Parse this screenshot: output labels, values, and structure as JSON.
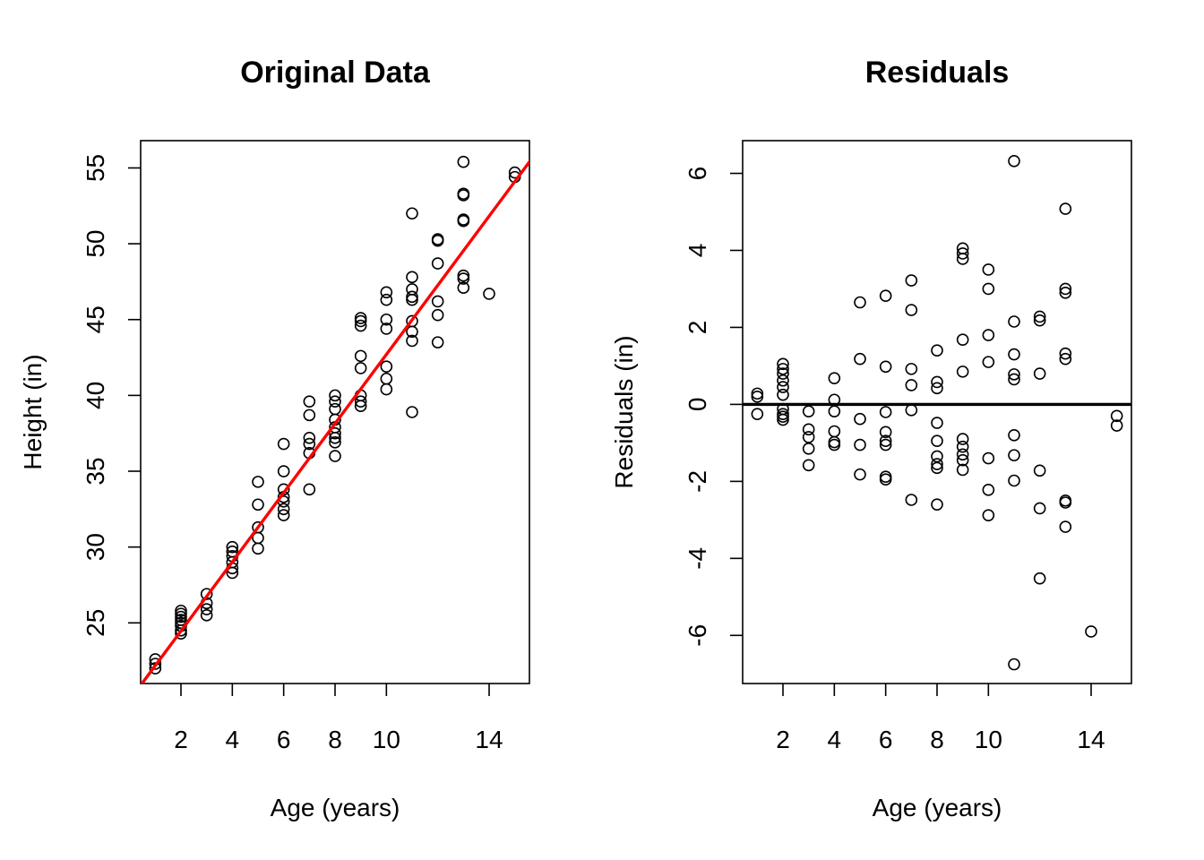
{
  "chart_data": [
    {
      "type": "scatter",
      "title": "Original Data",
      "xlabel": "Age (years)",
      "ylabel": "Height (in)",
      "xlim": [
        0.43,
        15.57
      ],
      "ylim": [
        21.0,
        56.8
      ],
      "xticks": [
        2,
        4,
        6,
        8,
        10,
        14
      ],
      "yticks": [
        25,
        30,
        35,
        40,
        45,
        50,
        55
      ],
      "grid": false,
      "fit_line": {
        "color": "#ff0000",
        "intercept": 19.9,
        "slope": 2.28
      },
      "points": [
        {
          "x": 1,
          "y": 22.0
        },
        {
          "x": 1,
          "y": 22.3
        },
        {
          "x": 1,
          "y": 22.6
        },
        {
          "x": 2,
          "y": 24.3
        },
        {
          "x": 2,
          "y": 24.5
        },
        {
          "x": 2,
          "y": 24.8
        },
        {
          "x": 2,
          "y": 25.0
        },
        {
          "x": 2,
          "y": 25.2
        },
        {
          "x": 2,
          "y": 25.4
        },
        {
          "x": 2,
          "y": 25.6
        },
        {
          "x": 2,
          "y": 25.8
        },
        {
          "x": 3,
          "y": 25.5
        },
        {
          "x": 3,
          "y": 25.9
        },
        {
          "x": 3,
          "y": 26.3
        },
        {
          "x": 3,
          "y": 26.9
        },
        {
          "x": 4,
          "y": 28.3
        },
        {
          "x": 4,
          "y": 28.6
        },
        {
          "x": 4,
          "y": 29.0
        },
        {
          "x": 4,
          "y": 29.4
        },
        {
          "x": 4,
          "y": 29.7
        },
        {
          "x": 4,
          "y": 30.0
        },
        {
          "x": 5,
          "y": 29.9
        },
        {
          "x": 5,
          "y": 30.6
        },
        {
          "x": 5,
          "y": 31.3
        },
        {
          "x": 5,
          "y": 32.8
        },
        {
          "x": 5,
          "y": 34.3
        },
        {
          "x": 6,
          "y": 32.1
        },
        {
          "x": 6,
          "y": 32.5
        },
        {
          "x": 6,
          "y": 33.0
        },
        {
          "x": 6,
          "y": 33.3
        },
        {
          "x": 6,
          "y": 33.8
        },
        {
          "x": 6,
          "y": 35.0
        },
        {
          "x": 6,
          "y": 36.8
        },
        {
          "x": 7,
          "y": 33.8
        },
        {
          "x": 7,
          "y": 36.2
        },
        {
          "x": 7,
          "y": 36.8
        },
        {
          "x": 7,
          "y": 37.2
        },
        {
          "x": 7,
          "y": 38.7
        },
        {
          "x": 7,
          "y": 39.6
        },
        {
          "x": 8,
          "y": 36.0
        },
        {
          "x": 8,
          "y": 36.9
        },
        {
          "x": 8,
          "y": 37.2
        },
        {
          "x": 8,
          "y": 37.5
        },
        {
          "x": 8,
          "y": 37.9
        },
        {
          "x": 8,
          "y": 38.4
        },
        {
          "x": 8,
          "y": 39.1
        },
        {
          "x": 8,
          "y": 39.6
        },
        {
          "x": 8,
          "y": 40.0
        },
        {
          "x": 9,
          "y": 39.3
        },
        {
          "x": 9,
          "y": 39.6
        },
        {
          "x": 9,
          "y": 40.0
        },
        {
          "x": 9,
          "y": 41.8
        },
        {
          "x": 9,
          "y": 42.6
        },
        {
          "x": 9,
          "y": 44.6
        },
        {
          "x": 9,
          "y": 44.9
        },
        {
          "x": 9,
          "y": 45.1
        },
        {
          "x": 10,
          "y": 40.4
        },
        {
          "x": 10,
          "y": 41.1
        },
        {
          "x": 10,
          "y": 41.9
        },
        {
          "x": 10,
          "y": 44.4
        },
        {
          "x": 10,
          "y": 45.0
        },
        {
          "x": 10,
          "y": 46.3
        },
        {
          "x": 10,
          "y": 46.8
        },
        {
          "x": 11,
          "y": 38.9
        },
        {
          "x": 11,
          "y": 43.6
        },
        {
          "x": 11,
          "y": 44.2
        },
        {
          "x": 11,
          "y": 44.9
        },
        {
          "x": 11,
          "y": 46.3
        },
        {
          "x": 11,
          "y": 46.5
        },
        {
          "x": 11,
          "y": 47.0
        },
        {
          "x": 11,
          "y": 47.8
        },
        {
          "x": 11,
          "y": 52.0
        },
        {
          "x": 12,
          "y": 43.5
        },
        {
          "x": 12,
          "y": 45.3
        },
        {
          "x": 12,
          "y": 46.2
        },
        {
          "x": 12,
          "y": 48.7
        },
        {
          "x": 12,
          "y": 50.2
        },
        {
          "x": 12,
          "y": 50.3
        },
        {
          "x": 13,
          "y": 47.1
        },
        {
          "x": 13,
          "y": 47.7
        },
        {
          "x": 13,
          "y": 47.9
        },
        {
          "x": 13,
          "y": 51.5
        },
        {
          "x": 13,
          "y": 51.6
        },
        {
          "x": 13,
          "y": 53.2
        },
        {
          "x": 13,
          "y": 53.3
        },
        {
          "x": 13,
          "y": 55.4
        },
        {
          "x": 14,
          "y": 46.7
        },
        {
          "x": 15,
          "y": 54.4
        },
        {
          "x": 15,
          "y": 54.7
        }
      ]
    },
    {
      "type": "scatter",
      "title": "Residuals",
      "xlabel": "Age (years)",
      "ylabel": "Residuals (in)",
      "xlim": [
        0.43,
        15.57
      ],
      "ylim": [
        -7.25,
        6.85
      ],
      "xticks": [
        2,
        4,
        6,
        8,
        10,
        14
      ],
      "yticks": [
        -6,
        -4,
        -2,
        0,
        2,
        4,
        6
      ],
      "grid": false,
      "zero_line": {
        "y": 0,
        "color": "#000000"
      },
      "points": [
        {
          "x": 1,
          "y": 0.28
        },
        {
          "x": 1,
          "y": 0.2
        },
        {
          "x": 1,
          "y": -0.25
        },
        {
          "x": 2,
          "y": 1.05
        },
        {
          "x": 2,
          "y": 0.92
        },
        {
          "x": 2,
          "y": 0.8
        },
        {
          "x": 2,
          "y": 0.62
        },
        {
          "x": 2,
          "y": 0.45
        },
        {
          "x": 2,
          "y": 0.25
        },
        {
          "x": 2,
          "y": -0.12
        },
        {
          "x": 2,
          "y": -0.25
        },
        {
          "x": 2,
          "y": -0.32
        },
        {
          "x": 2,
          "y": -0.4
        },
        {
          "x": 3,
          "y": -0.18
        },
        {
          "x": 3,
          "y": -0.65
        },
        {
          "x": 3,
          "y": -0.85
        },
        {
          "x": 3,
          "y": -1.15
        },
        {
          "x": 3,
          "y": -1.58
        },
        {
          "x": 4,
          "y": 0.68
        },
        {
          "x": 4,
          "y": 0.12
        },
        {
          "x": 4,
          "y": -0.18
        },
        {
          "x": 4,
          "y": -0.7
        },
        {
          "x": 4,
          "y": -0.98
        },
        {
          "x": 4,
          "y": -1.05
        },
        {
          "x": 5,
          "y": 2.65
        },
        {
          "x": 5,
          "y": 1.18
        },
        {
          "x": 5,
          "y": -0.38
        },
        {
          "x": 5,
          "y": -1.05
        },
        {
          "x": 5,
          "y": -1.82
        },
        {
          "x": 6,
          "y": 2.82
        },
        {
          "x": 6,
          "y": 0.98
        },
        {
          "x": 6,
          "y": -0.2
        },
        {
          "x": 6,
          "y": -0.72
        },
        {
          "x": 6,
          "y": -0.95
        },
        {
          "x": 6,
          "y": -1.05
        },
        {
          "x": 6,
          "y": -1.88
        },
        {
          "x": 6,
          "y": -1.95
        },
        {
          "x": 7,
          "y": 3.22
        },
        {
          "x": 7,
          "y": 2.45
        },
        {
          "x": 7,
          "y": 0.92
        },
        {
          "x": 7,
          "y": 0.5
        },
        {
          "x": 7,
          "y": -0.15
        },
        {
          "x": 7,
          "y": -2.48
        },
        {
          "x": 8,
          "y": 1.4
        },
        {
          "x": 8,
          "y": 0.58
        },
        {
          "x": 8,
          "y": 0.42
        },
        {
          "x": 8,
          "y": -0.48
        },
        {
          "x": 8,
          "y": -0.95
        },
        {
          "x": 8,
          "y": -1.35
        },
        {
          "x": 8,
          "y": -1.55
        },
        {
          "x": 8,
          "y": -1.65
        },
        {
          "x": 8,
          "y": -2.6
        },
        {
          "x": 9,
          "y": 4.05
        },
        {
          "x": 9,
          "y": 3.92
        },
        {
          "x": 9,
          "y": 3.78
        },
        {
          "x": 9,
          "y": 1.68
        },
        {
          "x": 9,
          "y": 0.85
        },
        {
          "x": 9,
          "y": -0.9
        },
        {
          "x": 9,
          "y": -1.1
        },
        {
          "x": 9,
          "y": -1.3
        },
        {
          "x": 9,
          "y": -1.45
        },
        {
          "x": 9,
          "y": -1.7
        },
        {
          "x": 10,
          "y": 3.5
        },
        {
          "x": 10,
          "y": 3.0
        },
        {
          "x": 10,
          "y": 1.8
        },
        {
          "x": 10,
          "y": 1.1
        },
        {
          "x": 10,
          "y": -1.4
        },
        {
          "x": 10,
          "y": -2.22
        },
        {
          "x": 10,
          "y": -2.88
        },
        {
          "x": 11,
          "y": 6.32
        },
        {
          "x": 11,
          "y": 2.15
        },
        {
          "x": 11,
          "y": 1.3
        },
        {
          "x": 11,
          "y": 0.78
        },
        {
          "x": 11,
          "y": 0.65
        },
        {
          "x": 11,
          "y": -0.8
        },
        {
          "x": 11,
          "y": -1.32
        },
        {
          "x": 11,
          "y": -1.98
        },
        {
          "x": 11,
          "y": -6.75
        },
        {
          "x": 12,
          "y": 2.28
        },
        {
          "x": 12,
          "y": 2.18
        },
        {
          "x": 12,
          "y": 0.8
        },
        {
          "x": 12,
          "y": -1.72
        },
        {
          "x": 12,
          "y": -2.7
        },
        {
          "x": 12,
          "y": -4.52
        },
        {
          "x": 13,
          "y": 5.08
        },
        {
          "x": 13,
          "y": 3.0
        },
        {
          "x": 13,
          "y": 2.9
        },
        {
          "x": 13,
          "y": 1.32
        },
        {
          "x": 13,
          "y": 1.18
        },
        {
          "x": 13,
          "y": -2.5
        },
        {
          "x": 13,
          "y": -2.55
        },
        {
          "x": 13,
          "y": -3.18
        },
        {
          "x": 14,
          "y": -5.9
        },
        {
          "x": 15,
          "y": -0.3
        },
        {
          "x": 15,
          "y": -0.55
        }
      ]
    }
  ]
}
